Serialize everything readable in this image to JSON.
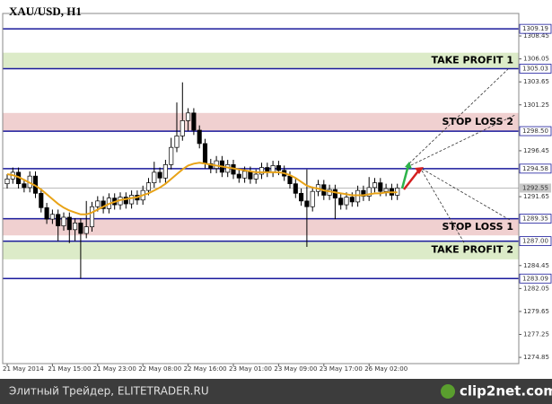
{
  "chart_data": {
    "type": "candlestick",
    "title": "XAU/USD, H1",
    "categories": [
      "21 May 2014",
      null,
      null,
      null,
      null,
      null,
      null,
      null,
      "21 May 15:00",
      null,
      null,
      null,
      null,
      null,
      null,
      null,
      "21 May 23:00",
      null,
      null,
      null,
      null,
      null,
      null,
      null,
      "22 May 08:00",
      null,
      null,
      null,
      null,
      null,
      null,
      null,
      "22 May 16:00",
      null,
      null,
      null,
      null,
      null,
      null,
      null,
      "23 May 01:00",
      null,
      null,
      null,
      null,
      null,
      null,
      null,
      "23 May 09:00",
      null,
      null,
      null,
      null,
      null,
      null,
      null,
      "23 May 17:00",
      null,
      null,
      null,
      null,
      null,
      null,
      null,
      "26 May 02:00",
      null,
      null,
      null,
      null,
      null
    ],
    "open": [
      1293.0,
      1293.5,
      1294.2,
      1293.0,
      1292.6,
      1293.8,
      1292.0,
      1290.5,
      1289.3,
      1289.8,
      1288.6,
      1289.5,
      1288.2,
      1288.9,
      1287.8,
      1288.5,
      1290.6,
      1291.2,
      1290.4,
      1291.5,
      1290.8,
      1291.6,
      1290.9,
      1291.8,
      1291.3,
      1292.3,
      1293.1,
      1294.2,
      1293.6,
      1295.0,
      1296.8,
      1298.0,
      1299.6,
      1300.4,
      1298.6,
      1297.2,
      1295.1,
      1294.6,
      1295.4,
      1294.2,
      1295.0,
      1294.0,
      1293.6,
      1294.3,
      1293.5,
      1294.0,
      1294.7,
      1294.2,
      1294.9,
      1294.4,
      1293.8,
      1293.0,
      1292.0,
      1291.2,
      1290.6,
      1292.2,
      1292.9,
      1291.8,
      1292.4,
      1291.5,
      1290.8,
      1291.6,
      1291.1,
      1292.3,
      1291.7,
      1292.6,
      1293.1,
      1292.2,
      1292.5,
      1291.8
    ],
    "high": [
      1294.0,
      1294.7,
      1294.7,
      1293.5,
      1294.3,
      1294.3,
      1292.5,
      1291.0,
      1290.3,
      1290.3,
      1290.0,
      1290.0,
      1289.4,
      1289.4,
      1291.2,
      1291.1,
      1291.7,
      1291.7,
      1292.0,
      1292.0,
      1292.1,
      1292.1,
      1292.3,
      1292.3,
      1292.8,
      1293.6,
      1295.3,
      1294.7,
      1295.5,
      1297.8,
      1301.5,
      1303.6,
      1300.9,
      1300.9,
      1299.1,
      1297.7,
      1295.6,
      1295.9,
      1295.9,
      1295.5,
      1295.5,
      1294.5,
      1294.8,
      1294.8,
      1294.5,
      1295.2,
      1295.2,
      1295.4,
      1295.4,
      1294.9,
      1294.3,
      1293.5,
      1292.5,
      1294.5,
      1292.7,
      1293.4,
      1293.4,
      1292.9,
      1292.9,
      1292.0,
      1292.1,
      1292.1,
      1292.8,
      1292.8,
      1293.7,
      1293.6,
      1293.6,
      1293.0,
      1293.0,
      1293.0
    ],
    "low": [
      1292.5,
      1293.0,
      1292.5,
      1292.1,
      1292.1,
      1291.5,
      1290.0,
      1288.8,
      1288.8,
      1287.0,
      1288.1,
      1286.8,
      1287.0,
      1283.1,
      1287.3,
      1288.0,
      1290.1,
      1289.9,
      1289.9,
      1290.3,
      1290.3,
      1290.4,
      1290.4,
      1290.8,
      1290.8,
      1291.8,
      1292.6,
      1293.1,
      1293.1,
      1294.5,
      1296.3,
      1297.5,
      1298.5,
      1298.1,
      1296.7,
      1294.6,
      1294.1,
      1294.1,
      1293.7,
      1293.7,
      1293.5,
      1293.1,
      1293.1,
      1293.0,
      1293.0,
      1293.5,
      1293.7,
      1293.7,
      1293.9,
      1293.3,
      1292.5,
      1291.5,
      1290.7,
      1286.4,
      1290.1,
      1291.7,
      1291.3,
      1291.3,
      1289.3,
      1290.3,
      1290.3,
      1290.6,
      1290.6,
      1291.2,
      1291.2,
      1292.1,
      1291.7,
      1291.7,
      1291.3,
      1291.3
    ],
    "close": [
      1293.5,
      1294.2,
      1293.0,
      1292.6,
      1293.8,
      1292.0,
      1290.5,
      1289.3,
      1289.8,
      1288.6,
      1289.5,
      1288.2,
      1288.9,
      1287.8,
      1288.5,
      1290.6,
      1291.2,
      1290.4,
      1291.5,
      1290.8,
      1291.6,
      1290.9,
      1291.8,
      1291.3,
      1292.3,
      1293.1,
      1294.2,
      1293.6,
      1295.0,
      1296.8,
      1298.0,
      1299.6,
      1300.4,
      1298.6,
      1297.2,
      1295.1,
      1294.6,
      1295.4,
      1294.2,
      1295.0,
      1294.0,
      1293.6,
      1294.3,
      1293.5,
      1294.0,
      1294.7,
      1294.2,
      1294.9,
      1294.4,
      1293.8,
      1293.0,
      1292.0,
      1291.2,
      1290.6,
      1292.2,
      1292.9,
      1291.8,
      1292.4,
      1291.5,
      1290.8,
      1291.6,
      1291.1,
      1292.3,
      1291.7,
      1292.6,
      1293.1,
      1292.2,
      1292.5,
      1291.8,
      1292.55
    ],
    "ma": [
      1294.0,
      1293.9,
      1293.7,
      1293.4,
      1293.1,
      1292.8,
      1292.4,
      1291.9,
      1291.4,
      1290.9,
      1290.5,
      1290.2,
      1290.0,
      1289.8,
      1289.8,
      1290.0,
      1290.3,
      1290.6,
      1290.9,
      1291.1,
      1291.3,
      1291.4,
      1291.5,
      1291.6,
      1291.8,
      1292.0,
      1292.3,
      1292.6,
      1293.0,
      1293.5,
      1294.0,
      1294.5,
      1294.9,
      1295.1,
      1295.2,
      1295.1,
      1295.0,
      1294.9,
      1294.8,
      1294.7,
      1294.6,
      1294.5,
      1294.4,
      1294.3,
      1294.2,
      1294.2,
      1294.2,
      1294.2,
      1294.2,
      1294.1,
      1293.9,
      1293.6,
      1293.2,
      1292.8,
      1292.6,
      1292.5,
      1292.3,
      1292.2,
      1292.1,
      1292.0,
      1291.9,
      1291.8,
      1291.8,
      1291.8,
      1291.9,
      1292.0,
      1292.0,
      1292.1,
      1292.1,
      1292.1
    ],
    "ma_color": "#e8a317",
    "ylim": [
      1274.2,
      1310.8
    ],
    "yticks": [
      1308.45,
      1306.05,
      1303.65,
      1301.25,
      1296.45,
      1291.65,
      1284.45,
      1282.05,
      1279.65,
      1277.25,
      1274.85
    ],
    "levels": [
      1309.19,
      1305.03,
      {
        "value": 1298.5,
        "label": "1298.50"
      },
      1294.58,
      1289.35,
      {
        "value": 1287.0,
        "label": "1287.00"
      },
      1283.09
    ],
    "level_color": "#1a1a9c",
    "last_price": 1292.55,
    "zones": [
      {
        "name": "TAKE PROFIT 1",
        "from": 1305.03,
        "to": 1306.7,
        "color": "#dcebc8"
      },
      {
        "name": "STOP LOSS 2",
        "from": 1298.5,
        "to": 1300.4,
        "color": "#f0d0d0"
      },
      {
        "name": "STOP LOSS 1",
        "from": 1287.6,
        "to": 1289.35,
        "color": "#f0d0d0"
      },
      {
        "name": "TAKE PROFIT 2",
        "from": 1285.1,
        "to": 1287.0,
        "color": "#dcebc8"
      }
    ]
  },
  "footer": {
    "source": "Элитный Трейдер, ELITETRADER.RU",
    "logo": "clip2net.com"
  }
}
